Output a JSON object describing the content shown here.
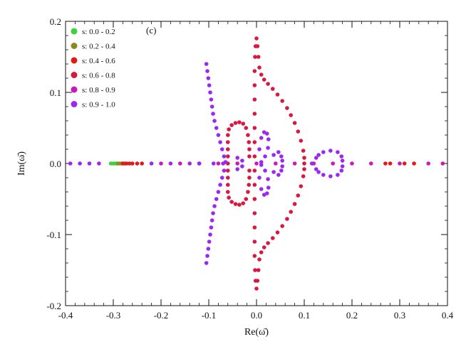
{
  "chart_data": {
    "type": "scatter",
    "panel_label": "(c)",
    "xlabel": "Re(ω̄)",
    "ylabel": "Im(ω̄)",
    "xlim": [
      -0.4,
      0.4
    ],
    "ylim": [
      -0.2,
      0.2
    ],
    "x_ticks": [
      -0.4,
      -0.3,
      -0.2,
      -0.1,
      0.0,
      0.1,
      0.2,
      0.3,
      0.4
    ],
    "x_tick_labels": [
      "-0.4",
      "-0.3",
      "-0.2",
      "-0.1",
      "0.0",
      "0.1",
      "0.2",
      "0.3",
      "0.4"
    ],
    "y_ticks": [
      -0.2,
      -0.1,
      0.0,
      0.1,
      0.2
    ],
    "y_tick_labels": [
      "-0.2",
      "-0.1",
      "0.0",
      "0.1",
      "0.2"
    ],
    "grid": false,
    "legend_position": "top-left",
    "series": [
      {
        "name": "s: 0.0 - 0.2",
        "color": "#3dd13d",
        "points": [
          [
            -0.305,
            0.0
          ],
          [
            -0.3,
            0.0
          ],
          [
            -0.296,
            0.0
          ],
          [
            -0.292,
            0.0
          ]
        ]
      },
      {
        "name": "s: 0.2 - 0.4",
        "color": "#8c8a1e",
        "points": [
          [
            -0.29,
            0.0
          ],
          [
            -0.286,
            0.0
          ],
          [
            -0.282,
            0.0
          ]
        ]
      },
      {
        "name": "s: 0.4 - 0.6",
        "color": "#e01a1a",
        "points": [
          [
            -0.28,
            0.0
          ],
          [
            -0.276,
            0.0
          ],
          [
            -0.272,
            0.0
          ],
          [
            -0.266,
            0.0
          ],
          [
            -0.26,
            0.0
          ],
          [
            -0.25,
            0.0
          ],
          [
            -0.24,
            0.0
          ],
          [
            0.27,
            0.0
          ],
          [
            0.28,
            0.0
          ],
          [
            0.31,
            0.0
          ],
          [
            0.33,
            0.0
          ]
        ]
      },
      {
        "name": "s: 0.6 - 0.8",
        "color": "#d81840",
        "points": [
          [
            -0.06,
            0.0
          ],
          [
            -0.06,
            0.01
          ],
          [
            -0.06,
            0.02
          ],
          [
            -0.06,
            0.03
          ],
          [
            -0.06,
            0.04
          ],
          [
            -0.058,
            0.048
          ],
          [
            -0.052,
            0.054
          ],
          [
            -0.044,
            0.057
          ],
          [
            -0.036,
            0.058
          ],
          [
            -0.028,
            0.056
          ],
          [
            -0.022,
            0.05
          ],
          [
            -0.018,
            0.04
          ],
          [
            -0.016,
            0.03
          ],
          [
            -0.015,
            0.02
          ],
          [
            -0.015,
            0.01
          ],
          [
            -0.06,
            -0.01
          ],
          [
            -0.06,
            -0.02
          ],
          [
            -0.06,
            -0.03
          ],
          [
            -0.06,
            -0.04
          ],
          [
            -0.058,
            -0.048
          ],
          [
            -0.052,
            -0.054
          ],
          [
            -0.044,
            -0.057
          ],
          [
            -0.036,
            -0.058
          ],
          [
            -0.028,
            -0.056
          ],
          [
            -0.022,
            -0.05
          ],
          [
            -0.018,
            -0.04
          ],
          [
            -0.016,
            -0.03
          ],
          [
            -0.015,
            -0.02
          ],
          [
            -0.015,
            -0.01
          ],
          [
            -0.004,
            0.01
          ],
          [
            -0.004,
            0.03
          ],
          [
            -0.004,
            0.05
          ],
          [
            -0.004,
            0.07
          ],
          [
            -0.004,
            0.09
          ],
          [
            -0.004,
            0.11
          ],
          [
            -0.004,
            0.13
          ],
          [
            -0.003,
            0.15
          ],
          [
            -0.002,
            0.165
          ],
          [
            0.0,
            0.176
          ],
          [
            0.002,
            0.165
          ],
          [
            0.004,
            0.15
          ],
          [
            0.006,
            0.135
          ],
          [
            0.01,
            0.125
          ],
          [
            0.016,
            0.118
          ],
          [
            0.024,
            0.112
          ],
          [
            0.034,
            0.105
          ],
          [
            0.044,
            0.097
          ],
          [
            0.054,
            0.088
          ],
          [
            0.064,
            0.078
          ],
          [
            0.072,
            0.068
          ],
          [
            0.08,
            0.057
          ],
          [
            0.087,
            0.045
          ],
          [
            0.093,
            0.032
          ],
          [
            0.098,
            0.018
          ],
          [
            0.1,
            0.008
          ],
          [
            0.1,
            0.0
          ],
          [
            -0.004,
            -0.01
          ],
          [
            -0.004,
            -0.03
          ],
          [
            -0.004,
            -0.05
          ],
          [
            -0.004,
            -0.07
          ],
          [
            -0.004,
            -0.09
          ],
          [
            -0.004,
            -0.11
          ],
          [
            -0.004,
            -0.13
          ],
          [
            -0.003,
            -0.15
          ],
          [
            -0.002,
            -0.165
          ],
          [
            0.0,
            -0.176
          ],
          [
            0.002,
            -0.165
          ],
          [
            0.004,
            -0.15
          ],
          [
            0.006,
            -0.135
          ],
          [
            0.01,
            -0.125
          ],
          [
            0.016,
            -0.118
          ],
          [
            0.024,
            -0.112
          ],
          [
            0.034,
            -0.105
          ],
          [
            0.044,
            -0.097
          ],
          [
            0.054,
            -0.088
          ],
          [
            0.064,
            -0.078
          ],
          [
            0.072,
            -0.068
          ],
          [
            0.08,
            -0.057
          ],
          [
            0.087,
            -0.045
          ],
          [
            0.093,
            -0.032
          ],
          [
            0.098,
            -0.018
          ],
          [
            0.1,
            -0.008
          ]
        ]
      },
      {
        "name": "s: 0.8 - 0.9",
        "color": "#c81ab8",
        "points": [
          [
            -0.2,
            0.0
          ],
          [
            -0.16,
            0.0
          ],
          [
            -0.12,
            0.0
          ],
          [
            -0.08,
            0.0
          ],
          [
            -0.04,
            0.0
          ],
          [
            0.0,
            0.0
          ],
          [
            0.04,
            0.0
          ],
          [
            0.08,
            0.0
          ],
          [
            0.12,
            0.0
          ],
          [
            0.16,
            0.0
          ],
          [
            0.2,
            0.0
          ],
          [
            0.24,
            0.0
          ],
          [
            0.3,
            0.0
          ],
          [
            0.36,
            0.0
          ],
          [
            0.39,
            0.0
          ]
        ]
      },
      {
        "name": "s: 0.9 - 1.0",
        "color": "#9a28f0",
        "points": [
          [
            -0.39,
            0.0
          ],
          [
            -0.37,
            0.0
          ],
          [
            -0.35,
            0.0
          ],
          [
            -0.33,
            0.0
          ],
          [
            -0.22,
            0.0
          ],
          [
            -0.18,
            0.0
          ],
          [
            -0.14,
            0.0
          ],
          [
            -0.12,
            0.0
          ],
          [
            -0.09,
            0.0
          ],
          [
            -0.07,
            0.0
          ],
          [
            -0.065,
            0.002
          ],
          [
            -0.068,
            0.01
          ],
          [
            -0.072,
            0.02
          ],
          [
            -0.076,
            0.03
          ],
          [
            -0.08,
            0.04
          ],
          [
            -0.084,
            0.05
          ],
          [
            -0.088,
            0.06
          ],
          [
            -0.091,
            0.07
          ],
          [
            -0.093,
            0.08
          ],
          [
            -0.095,
            0.09
          ],
          [
            -0.097,
            0.1
          ],
          [
            -0.099,
            0.11
          ],
          [
            -0.101,
            0.12
          ],
          [
            -0.103,
            0.13
          ],
          [
            -0.105,
            0.14
          ],
          [
            -0.068,
            -0.01
          ],
          [
            -0.072,
            -0.02
          ],
          [
            -0.076,
            -0.03
          ],
          [
            -0.08,
            -0.04
          ],
          [
            -0.084,
            -0.05
          ],
          [
            -0.088,
            -0.06
          ],
          [
            -0.091,
            -0.07
          ],
          [
            -0.093,
            -0.08
          ],
          [
            -0.095,
            -0.09
          ],
          [
            -0.097,
            -0.1
          ],
          [
            -0.099,
            -0.11
          ],
          [
            -0.101,
            -0.12
          ],
          [
            -0.103,
            -0.13
          ],
          [
            -0.105,
            -0.14
          ],
          [
            -0.04,
            0.008
          ],
          [
            -0.03,
            0.004
          ],
          [
            -0.03,
            -0.004
          ],
          [
            -0.04,
            -0.008
          ],
          [
            0.006,
            0.02
          ],
          [
            0.01,
            0.036
          ],
          [
            0.016,
            0.044
          ],
          [
            0.022,
            0.042
          ],
          [
            0.025,
            0.034
          ],
          [
            0.024,
            0.022
          ],
          [
            0.018,
            0.01
          ],
          [
            0.01,
            0.002
          ],
          [
            0.006,
            -0.02
          ],
          [
            0.01,
            -0.036
          ],
          [
            0.016,
            -0.044
          ],
          [
            0.022,
            -0.042
          ],
          [
            0.025,
            -0.034
          ],
          [
            0.024,
            -0.022
          ],
          [
            0.018,
            -0.01
          ],
          [
            0.01,
            -0.002
          ],
          [
            0.036,
            0.012
          ],
          [
            0.046,
            0.016
          ],
          [
            0.052,
            0.01
          ],
          [
            0.054,
            0.004
          ],
          [
            0.036,
            -0.012
          ],
          [
            0.046,
            -0.016
          ],
          [
            0.052,
            -0.01
          ],
          [
            0.054,
            -0.004
          ],
          [
            0.116,
            0.0
          ],
          [
            0.125,
            0.008
          ],
          [
            0.13,
            0.012
          ],
          [
            0.14,
            0.016
          ],
          [
            0.155,
            0.018
          ],
          [
            0.17,
            0.016
          ],
          [
            0.178,
            0.01
          ],
          [
            0.18,
            0.004
          ],
          [
            0.125,
            -0.008
          ],
          [
            0.13,
            -0.012
          ],
          [
            0.14,
            -0.016
          ],
          [
            0.155,
            -0.018
          ],
          [
            0.17,
            -0.016
          ],
          [
            0.178,
            -0.01
          ],
          [
            0.18,
            -0.004
          ]
        ]
      }
    ]
  }
}
